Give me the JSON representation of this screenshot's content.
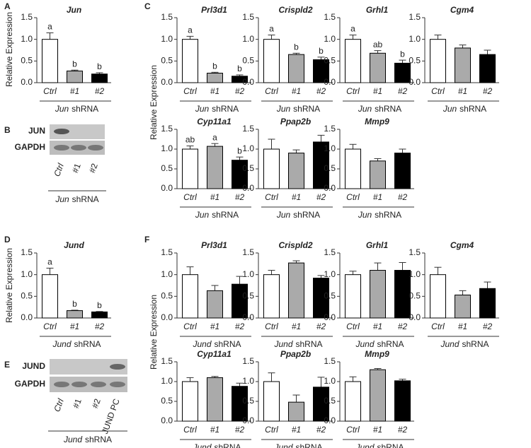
{
  "panel_labels": [
    "A",
    "B",
    "C",
    "D",
    "E",
    "F"
  ],
  "chart_data": [
    {
      "type": "bar",
      "title": "Jun",
      "ylabel": "Relative Expression",
      "categories": [
        "Ctrl",
        "#1",
        "#2"
      ],
      "values": [
        1.0,
        0.27,
        0.2
      ],
      "errors": [
        0.15,
        0.02,
        0.03
      ],
      "annotations": [
        "a",
        "b",
        "b"
      ],
      "colors": [
        "#ffffff",
        "#aaaaaa",
        "#000000"
      ],
      "ylim": [
        0,
        1.5
      ],
      "yticks": [
        {
          "value": 0,
          "label": "0.0"
        },
        {
          "value": 0.5,
          "label": "0.5"
        },
        {
          "value": 1,
          "label": "1.0"
        },
        {
          "value": 1.5,
          "label": "1.5"
        }
      ],
      "xlabel_gene": "Jun",
      "xlabel_text": "shRNA"
    },
    {
      "type": "bar",
      "title": "Prl3d1",
      "ylabel": "Relative Expression",
      "categories": [
        "Ctrl",
        "#1",
        "#2"
      ],
      "values": [
        1.0,
        0.22,
        0.15
      ],
      "errors": [
        0.07,
        0.02,
        0.03
      ],
      "annotations": [
        "a",
        "b",
        "b"
      ],
      "colors": [
        "#ffffff",
        "#aaaaaa",
        "#000000"
      ],
      "ylim": [
        0,
        1.5
      ],
      "yticks": [
        {
          "value": 0,
          "label": "0.0"
        },
        {
          "value": 0.5,
          "label": "0.5"
        },
        {
          "value": 1,
          "label": "1.0"
        },
        {
          "value": 1.5,
          "label": "1.5"
        }
      ],
      "xlabel_gene": "Jun",
      "xlabel_text": "shRNA"
    },
    {
      "type": "bar",
      "title": "Crispld2",
      "categories": [
        "Ctrl",
        "#1",
        "#2"
      ],
      "values": [
        1.0,
        0.65,
        0.53
      ],
      "errors": [
        0.1,
        0.03,
        0.06
      ],
      "annotations": [
        "a",
        "b",
        "b"
      ],
      "colors": [
        "#ffffff",
        "#aaaaaa",
        "#000000"
      ],
      "ylim": [
        0,
        1.5
      ],
      "yticks": [
        {
          "value": 0,
          "label": "0.0"
        },
        {
          "value": 0.5,
          "label": "0.5"
        },
        {
          "value": 1,
          "label": "1.0"
        },
        {
          "value": 1.5,
          "label": "1.5"
        }
      ],
      "xlabel_gene": "Jun",
      "xlabel_text": "shRNA"
    },
    {
      "type": "bar",
      "title": "Grhl1",
      "categories": [
        "Ctrl",
        "#1",
        "#2"
      ],
      "values": [
        1.0,
        0.68,
        0.45
      ],
      "errors": [
        0.1,
        0.06,
        0.07
      ],
      "annotations": [
        "a",
        "ab",
        "b"
      ],
      "colors": [
        "#ffffff",
        "#aaaaaa",
        "#000000"
      ],
      "ylim": [
        0,
        1.5
      ],
      "yticks": [
        {
          "value": 0,
          "label": "0.0"
        },
        {
          "value": 0.5,
          "label": "0.5"
        },
        {
          "value": 1,
          "label": "1.0"
        },
        {
          "value": 1.5,
          "label": "1.5"
        }
      ],
      "xlabel_gene": "Jun",
      "xlabel_text": "shRNA"
    },
    {
      "type": "bar",
      "title": "Cgm4",
      "categories": [
        "Ctrl",
        "#1",
        "#2"
      ],
      "values": [
        1.0,
        0.8,
        0.65
      ],
      "errors": [
        0.1,
        0.07,
        0.1
      ],
      "colors": [
        "#ffffff",
        "#aaaaaa",
        "#000000"
      ],
      "ylim": [
        0,
        1.5
      ],
      "yticks": [
        {
          "value": 0,
          "label": "0.0"
        },
        {
          "value": 0.5,
          "label": "0.5"
        },
        {
          "value": 1,
          "label": "1.0"
        },
        {
          "value": 1.5,
          "label": "1.5"
        }
      ],
      "xlabel_gene": "Jun",
      "xlabel_text": "shRNA"
    },
    {
      "type": "bar",
      "title": "Cyp11a1",
      "categories": [
        "Ctrl",
        "#1",
        "#2"
      ],
      "values": [
        1.0,
        1.07,
        0.72
      ],
      "errors": [
        0.08,
        0.07,
        0.08
      ],
      "annotations": [
        "ab",
        "a",
        "b"
      ],
      "colors": [
        "#ffffff",
        "#aaaaaa",
        "#000000"
      ],
      "ylim": [
        0,
        1.5
      ],
      "yticks": [
        {
          "value": 0,
          "label": "0.0"
        },
        {
          "value": 0.5,
          "label": "0.5"
        },
        {
          "value": 1,
          "label": "1.0"
        },
        {
          "value": 1.5,
          "label": "1.5"
        }
      ],
      "xlabel_gene": "Jun",
      "xlabel_text": "shRNA"
    },
    {
      "type": "bar",
      "title": "Ppap2b",
      "categories": [
        "Ctrl",
        "#1",
        "#2"
      ],
      "values": [
        1.0,
        0.9,
        1.18
      ],
      "errors": [
        0.25,
        0.08,
        0.17
      ],
      "colors": [
        "#ffffff",
        "#aaaaaa",
        "#000000"
      ],
      "ylim": [
        0,
        1.5
      ],
      "yticks": [
        {
          "value": 0,
          "label": "0.0"
        },
        {
          "value": 0.5,
          "label": "0.5"
        },
        {
          "value": 1,
          "label": "1.0"
        },
        {
          "value": 1.5,
          "label": "1.5"
        }
      ],
      "xlabel_gene": "Jun",
      "xlabel_text": "shRNA"
    },
    {
      "type": "bar",
      "title": "Mmp9",
      "categories": [
        "Ctrl",
        "#1",
        "#2"
      ],
      "values": [
        1.0,
        0.7,
        0.9
      ],
      "errors": [
        0.12,
        0.06,
        0.1
      ],
      "colors": [
        "#ffffff",
        "#aaaaaa",
        "#000000"
      ],
      "ylim": [
        0,
        1.5
      ],
      "yticks": [
        {
          "value": 0,
          "label": "0.0"
        },
        {
          "value": 0.5,
          "label": "0.5"
        },
        {
          "value": 1,
          "label": "1.0"
        },
        {
          "value": 1.5,
          "label": "1.5"
        }
      ],
      "xlabel_gene": "Jun",
      "xlabel_text": "shRNA"
    },
    {
      "type": "bar",
      "title": "Jund",
      "ylabel": "Relative Expression",
      "categories": [
        "Ctrl",
        "#1",
        "#2"
      ],
      "values": [
        1.0,
        0.17,
        0.14
      ],
      "errors": [
        0.15,
        0.01,
        0.01
      ],
      "annotations": [
        "a",
        "b",
        "b"
      ],
      "colors": [
        "#ffffff",
        "#aaaaaa",
        "#000000"
      ],
      "ylim": [
        0,
        1.5
      ],
      "yticks": [
        {
          "value": 0,
          "label": "0.0"
        },
        {
          "value": 0.5,
          "label": "0.5"
        },
        {
          "value": 1,
          "label": "1.0"
        },
        {
          "value": 1.5,
          "label": "1.5"
        }
      ],
      "xlabel_gene": "Jund",
      "xlabel_text": "shRNA"
    },
    {
      "type": "bar",
      "title": "Prl3d1",
      "ylabel": "Relative Expression",
      "categories": [
        "Ctrl",
        "#1",
        "#2"
      ],
      "values": [
        1.0,
        0.63,
        0.78
      ],
      "errors": [
        0.18,
        0.12,
        0.18
      ],
      "colors": [
        "#ffffff",
        "#aaaaaa",
        "#000000"
      ],
      "ylim": [
        0,
        1.5
      ],
      "yticks": [
        {
          "value": 0,
          "label": "0.0"
        },
        {
          "value": 0.5,
          "label": "0.5"
        },
        {
          "value": 1,
          "label": "1.0"
        },
        {
          "value": 1.5,
          "label": "1.5"
        }
      ],
      "xlabel_gene": "Jund",
      "xlabel_text": "shRNA"
    },
    {
      "type": "bar",
      "title": "Crispld2",
      "categories": [
        "Ctrl",
        "#1",
        "#2"
      ],
      "values": [
        1.0,
        1.27,
        0.92
      ],
      "errors": [
        0.1,
        0.05,
        0.06
      ],
      "colors": [
        "#ffffff",
        "#aaaaaa",
        "#000000"
      ],
      "ylim": [
        0,
        1.5
      ],
      "yticks": [
        {
          "value": 0,
          "label": "0.0"
        },
        {
          "value": 0.5,
          "label": "0.5"
        },
        {
          "value": 1,
          "label": "1.0"
        },
        {
          "value": 1.5,
          "label": "1.5"
        }
      ],
      "xlabel_gene": "Jund",
      "xlabel_text": "shRNA"
    },
    {
      "type": "bar",
      "title": "Grhl1",
      "categories": [
        "Ctrl",
        "#1",
        "#2"
      ],
      "values": [
        1.0,
        1.1,
        1.1
      ],
      "errors": [
        0.08,
        0.17,
        0.18
      ],
      "colors": [
        "#ffffff",
        "#aaaaaa",
        "#000000"
      ],
      "ylim": [
        0,
        1.5
      ],
      "yticks": [
        {
          "value": 0,
          "label": "0.0"
        },
        {
          "value": 0.5,
          "label": "0.5"
        },
        {
          "value": 1,
          "label": "1.0"
        },
        {
          "value": 1.5,
          "label": "1.5"
        }
      ],
      "xlabel_gene": "Jund",
      "xlabel_text": "shRNA"
    },
    {
      "type": "bar",
      "title": "Cgm4",
      "categories": [
        "Ctrl",
        "#1",
        "#2"
      ],
      "values": [
        1.0,
        0.53,
        0.68
      ],
      "errors": [
        0.17,
        0.1,
        0.15
      ],
      "colors": [
        "#ffffff",
        "#aaaaaa",
        "#000000"
      ],
      "ylim": [
        0,
        1.5
      ],
      "yticks": [
        {
          "value": 0,
          "label": "0.0"
        },
        {
          "value": 0.5,
          "label": "0.5"
        },
        {
          "value": 1,
          "label": "1.0"
        },
        {
          "value": 1.5,
          "label": "1.5"
        }
      ],
      "xlabel_gene": "Jund",
      "xlabel_text": "shRNA"
    },
    {
      "type": "bar",
      "title": "Cyp11a1",
      "categories": [
        "Ctrl",
        "#1",
        "#2"
      ],
      "values": [
        1.0,
        1.1,
        0.88
      ],
      "errors": [
        0.1,
        0.03,
        0.08
      ],
      "colors": [
        "#ffffff",
        "#aaaaaa",
        "#000000"
      ],
      "ylim": [
        0,
        1.5
      ],
      "yticks": [
        {
          "value": 0,
          "label": "0.0"
        },
        {
          "value": 0.5,
          "label": "0.5"
        },
        {
          "value": 1,
          "label": "1.0"
        },
        {
          "value": 1.5,
          "label": "1.5"
        }
      ],
      "xlabel_gene": "Jund",
      "xlabel_text": "shRNA"
    },
    {
      "type": "bar",
      "title": "Ppap2b",
      "categories": [
        "Ctrl",
        "#1",
        "#2"
      ],
      "values": [
        1.0,
        0.48,
        0.86
      ],
      "errors": [
        0.22,
        0.18,
        0.25
      ],
      "colors": [
        "#ffffff",
        "#aaaaaa",
        "#000000"
      ],
      "ylim": [
        0,
        1.5
      ],
      "yticks": [
        {
          "value": 0,
          "label": "0.0"
        },
        {
          "value": 0.5,
          "label": "0.5"
        },
        {
          "value": 1,
          "label": "1.0"
        },
        {
          "value": 1.5,
          "label": "1.5"
        }
      ],
      "xlabel_gene": "Jund",
      "xlabel_text": "shRNA"
    },
    {
      "type": "bar",
      "title": "Mmp9",
      "categories": [
        "Ctrl",
        "#1",
        "#2"
      ],
      "values": [
        1.0,
        1.3,
        1.02
      ],
      "errors": [
        0.12,
        0.03,
        0.04
      ],
      "colors": [
        "#ffffff",
        "#aaaaaa",
        "#000000"
      ],
      "ylim": [
        0,
        1.5
      ],
      "yticks": [
        {
          "value": 0,
          "label": "0.0"
        },
        {
          "value": 0.5,
          "label": "0.5"
        },
        {
          "value": 1,
          "label": "1.0"
        },
        {
          "value": 1.5,
          "label": "1.5"
        }
      ],
      "xlabel_gene": "Jund",
      "xlabel_text": "shRNA"
    }
  ],
  "blots": [
    {
      "rows": [
        "JUN",
        "GAPDH"
      ],
      "lanes": [
        "Ctrl",
        "#1",
        "#2"
      ],
      "xlabel_gene": "Jun",
      "xlabel_text": "shRNA"
    },
    {
      "rows": [
        "JUND",
        "GAPDH"
      ],
      "lanes": [
        "Ctrl",
        "#1",
        "#2",
        "JUND PC"
      ],
      "xlabel_gene": "Jund",
      "xlabel_text": "shRNA"
    }
  ]
}
